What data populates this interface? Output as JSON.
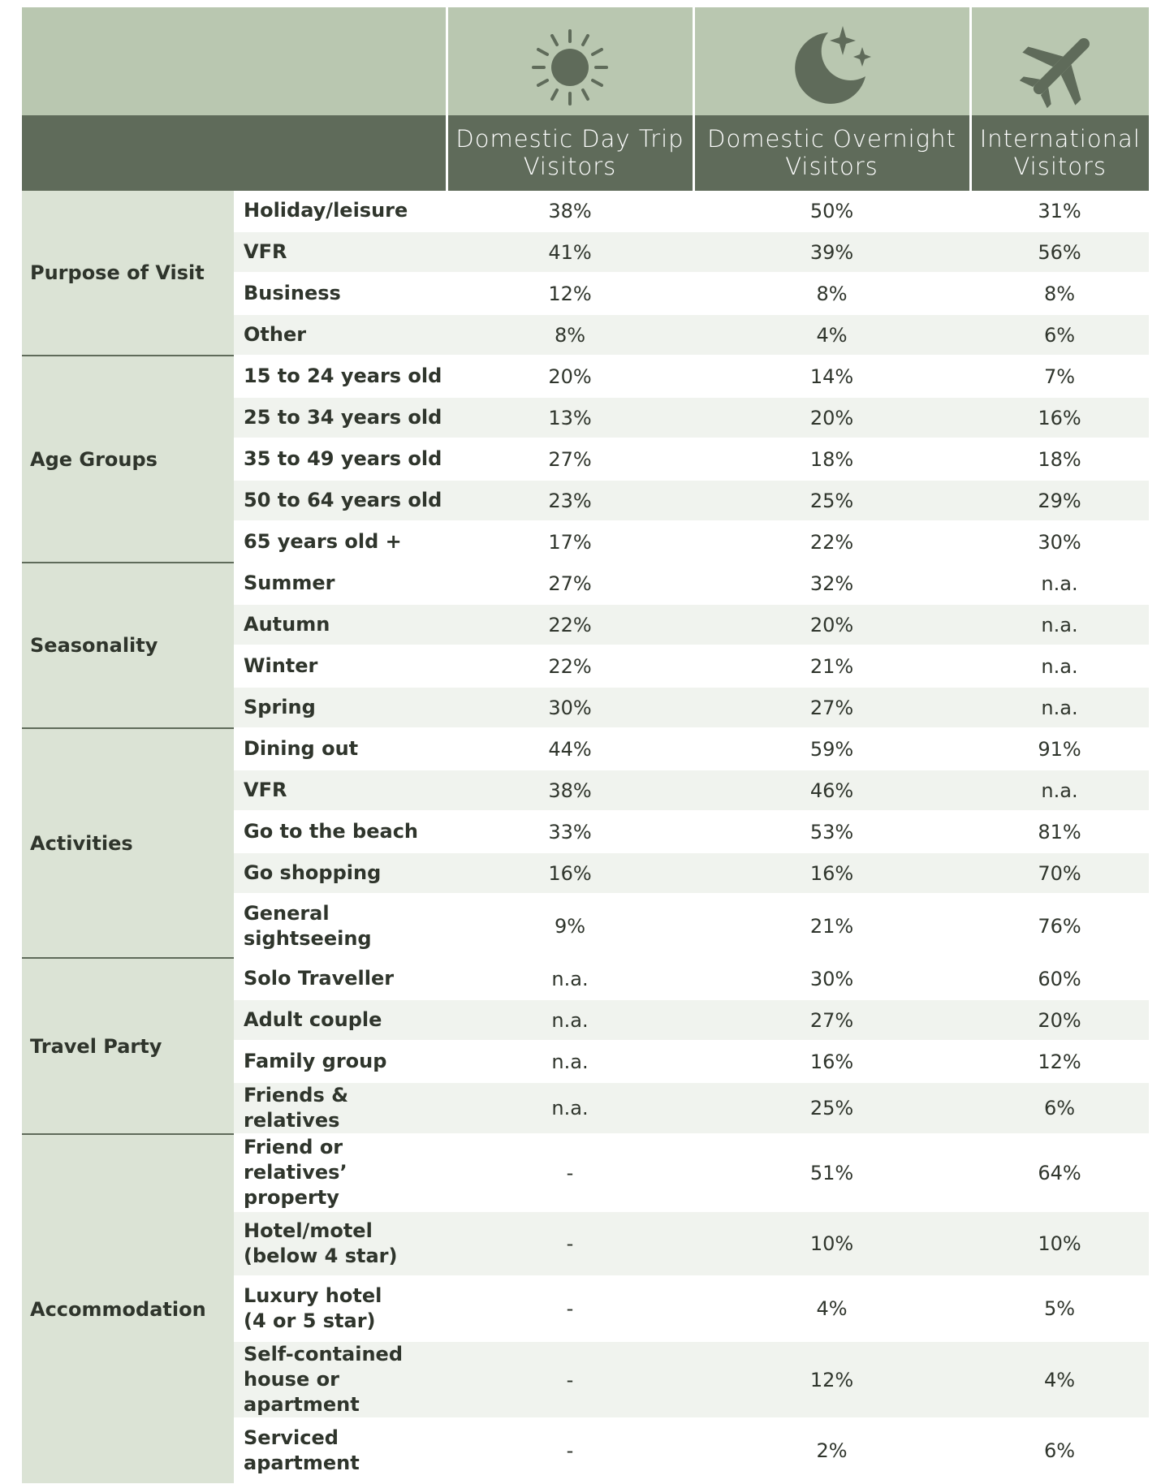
{
  "table": {
    "columns": [
      "Domestic Day Trip\nVisitors",
      "Domestic Overnight\nVisitors",
      "International\nVisitors"
    ],
    "groups": [
      {
        "name": "Purpose of Visit",
        "rows": [
          {
            "label": "Holiday/leisure",
            "values": [
              "38%",
              "50%",
              "31%"
            ]
          },
          {
            "label": "VFR",
            "values": [
              "41%",
              "39%",
              "56%"
            ]
          },
          {
            "label": "Business",
            "values": [
              "12%",
              "8%",
              "8%"
            ]
          },
          {
            "label": "Other",
            "values": [
              "8%",
              "4%",
              "6%"
            ]
          }
        ]
      },
      {
        "name": "Age Groups",
        "rows": [
          {
            "label": "15 to 24 years old",
            "values": [
              "20%",
              "14%",
              "7%"
            ]
          },
          {
            "label": "25 to 34 years old",
            "values": [
              "13%",
              "20%",
              "16%"
            ]
          },
          {
            "label": "35 to 49 years old",
            "values": [
              "27%",
              "18%",
              "18%"
            ]
          },
          {
            "label": "50 to 64 years old",
            "values": [
              "23%",
              "25%",
              "29%"
            ]
          },
          {
            "label": "65 years old +",
            "values": [
              "17%",
              "22%",
              "30%"
            ]
          }
        ]
      },
      {
        "name": "Seasonality",
        "rows": [
          {
            "label": "Summer",
            "values": [
              "27%",
              "32%",
              "n.a."
            ]
          },
          {
            "label": "Autumn",
            "values": [
              "22%",
              "20%",
              "n.a."
            ]
          },
          {
            "label": "Winter",
            "values": [
              "22%",
              "21%",
              "n.a."
            ]
          },
          {
            "label": "Spring",
            "values": [
              "30%",
              "27%",
              "n.a."
            ]
          }
        ]
      },
      {
        "name": "Activities",
        "rows": [
          {
            "label": "Dining out",
            "values": [
              "44%",
              "59%",
              "91%"
            ]
          },
          {
            "label": "VFR",
            "values": [
              "38%",
              "46%",
              "n.a."
            ]
          },
          {
            "label": "Go to the beach",
            "values": [
              "33%",
              "53%",
              "81%"
            ]
          },
          {
            "label": "Go shopping",
            "values": [
              "16%",
              "16%",
              "70%"
            ]
          },
          {
            "label": "General\nsightseeing",
            "values": [
              "9%",
              "21%",
              "76%"
            ]
          }
        ]
      },
      {
        "name": "Travel Party",
        "rows": [
          {
            "label": "Solo Traveller",
            "values": [
              "n.a.",
              "30%",
              "60%"
            ]
          },
          {
            "label": "Adult couple",
            "values": [
              "n.a.",
              "27%",
              "20%"
            ]
          },
          {
            "label": "Family group",
            "values": [
              "n.a.",
              "16%",
              "12%"
            ]
          },
          {
            "label": "Friends & relatives",
            "values": [
              "n.a.",
              "25%",
              "6%"
            ]
          }
        ]
      },
      {
        "name": "Accommodation",
        "rows": [
          {
            "label": "Friend or relatives’\nproperty",
            "values": [
              "-",
              "51%",
              "64%"
            ]
          },
          {
            "label": "Hotel/motel\n(below 4 star)",
            "values": [
              "-",
              "10%",
              "10%"
            ]
          },
          {
            "label": "Luxury hotel\n(4 or 5 star)",
            "values": [
              "-",
              "4%",
              "5%"
            ]
          },
          {
            "label": "Self-contained\nhouse or apartment",
            "values": [
              "-",
              "12%",
              "4%"
            ]
          },
          {
            "label": "Serviced\napartment",
            "values": [
              "-",
              "2%",
              "6%"
            ]
          }
        ]
      }
    ]
  }
}
